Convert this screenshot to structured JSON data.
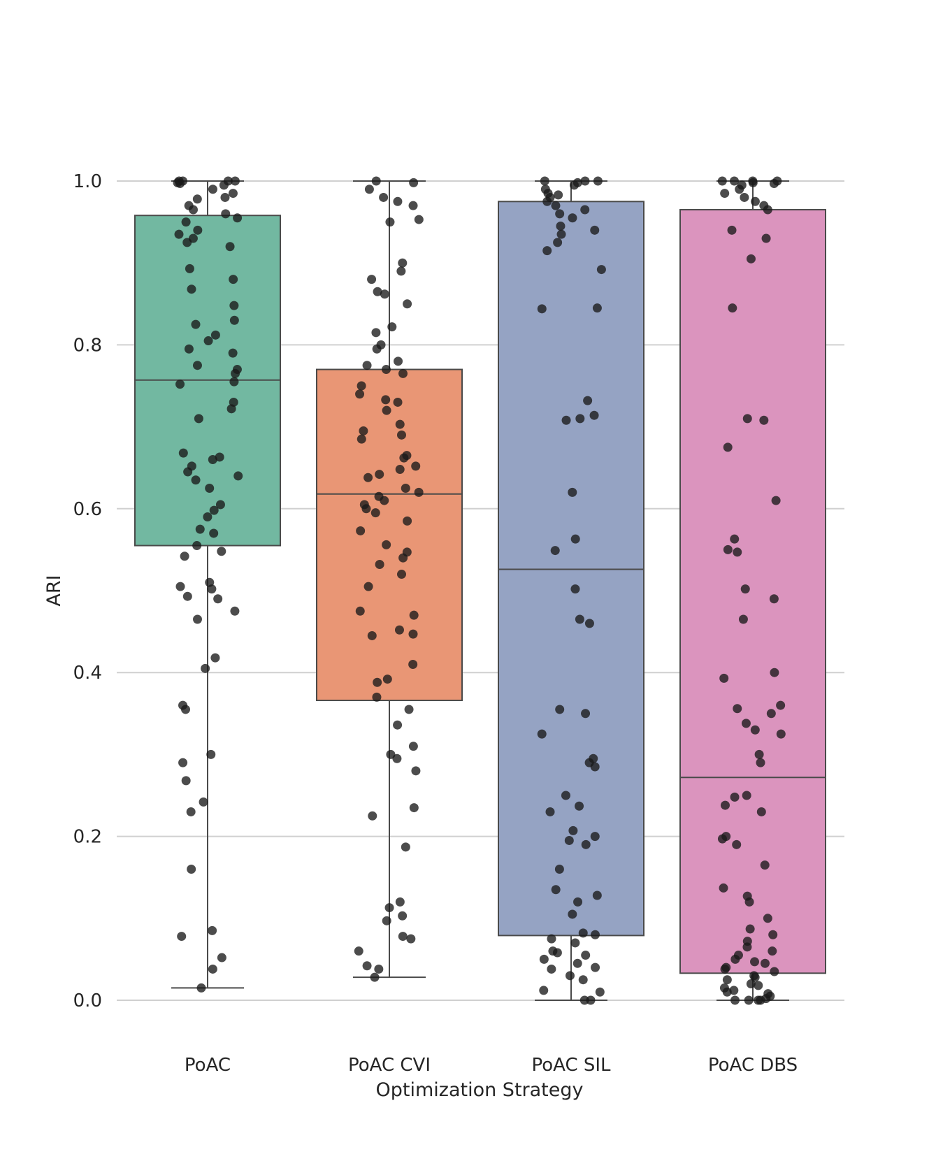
{
  "chart_data": {
    "type": "box",
    "xlabel": "Optimization Strategy",
    "ylabel": "ARI",
    "ylim": [
      0,
      1
    ],
    "yticks": [
      "0.0",
      "0.2",
      "0.4",
      "0.6",
      "0.8",
      "1.0"
    ],
    "grid": "horizontal",
    "categories": [
      "PoAC",
      "PoAC CVI",
      "PoAC SIL",
      "PoAC DBS"
    ],
    "colors": [
      "#72b8a1",
      "#e99675",
      "#95a3c3",
      "#db94be"
    ],
    "point_color": "#1a1a1a",
    "boxes": [
      {
        "name": "PoAC",
        "whisker_low": 0.015,
        "q1": 0.555,
        "median": 0.757,
        "q3": 0.958,
        "whisker_high": 1.0
      },
      {
        "name": "PoAC CVI",
        "whisker_low": 0.028,
        "q1": 0.366,
        "median": 0.618,
        "q3": 0.77,
        "whisker_high": 1.0
      },
      {
        "name": "PoAC SIL",
        "whisker_low": 0.0,
        "q1": 0.079,
        "median": 0.526,
        "q3": 0.975,
        "whisker_high": 1.0
      },
      {
        "name": "PoAC DBS",
        "whisker_low": 0.0,
        "q1": 0.033,
        "median": 0.272,
        "q3": 0.965,
        "whisker_high": 1.0
      }
    ],
    "points": [
      [
        1.0,
        1.0,
        1.0,
        1.0,
        0.998,
        0.997,
        0.995,
        0.99,
        0.985,
        0.98,
        0.978,
        0.97,
        0.965,
        0.96,
        0.955,
        0.95,
        0.94,
        0.935,
        0.93,
        0.925,
        0.92,
        0.893,
        0.88,
        0.868,
        0.848,
        0.83,
        0.825,
        0.812,
        0.805,
        0.795,
        0.79,
        0.775,
        0.77,
        0.765,
        0.755,
        0.752,
        0.73,
        0.722,
        0.71,
        0.668,
        0.663,
        0.66,
        0.652,
        0.645,
        0.64,
        0.635,
        0.625,
        0.605,
        0.598,
        0.59,
        0.575,
        0.57,
        0.555,
        0.548,
        0.542,
        0.51,
        0.505,
        0.502,
        0.493,
        0.49,
        0.475,
        0.465,
        0.418,
        0.405,
        0.36,
        0.355,
        0.3,
        0.29,
        0.268,
        0.242,
        0.23,
        0.16,
        0.085,
        0.078,
        0.052,
        0.038,
        0.015
      ],
      [
        1.0,
        0.998,
        0.99,
        0.98,
        0.975,
        0.97,
        0.953,
        0.95,
        0.9,
        0.89,
        0.88,
        0.865,
        0.862,
        0.85,
        0.822,
        0.815,
        0.8,
        0.795,
        0.78,
        0.775,
        0.77,
        0.765,
        0.75,
        0.74,
        0.733,
        0.73,
        0.72,
        0.703,
        0.695,
        0.69,
        0.685,
        0.665,
        0.662,
        0.652,
        0.648,
        0.642,
        0.638,
        0.625,
        0.62,
        0.615,
        0.61,
        0.605,
        0.6,
        0.595,
        0.585,
        0.573,
        0.556,
        0.547,
        0.54,
        0.532,
        0.52,
        0.505,
        0.475,
        0.47,
        0.452,
        0.447,
        0.445,
        0.41,
        0.392,
        0.388,
        0.37,
        0.355,
        0.336,
        0.31,
        0.3,
        0.295,
        0.28,
        0.235,
        0.225,
        0.187,
        0.12,
        0.113,
        0.103,
        0.097,
        0.078,
        0.075,
        0.06,
        0.042,
        0.038,
        0.028
      ],
      [
        1.0,
        1.0,
        1.0,
        0.998,
        0.995,
        0.99,
        0.985,
        0.983,
        0.98,
        0.975,
        0.97,
        0.965,
        0.96,
        0.955,
        0.945,
        0.94,
        0.935,
        0.925,
        0.915,
        0.892,
        0.845,
        0.844,
        0.732,
        0.714,
        0.71,
        0.708,
        0.62,
        0.563,
        0.549,
        0.502,
        0.465,
        0.46,
        0.355,
        0.35,
        0.325,
        0.295,
        0.29,
        0.285,
        0.25,
        0.237,
        0.23,
        0.207,
        0.2,
        0.195,
        0.19,
        0.16,
        0.135,
        0.128,
        0.12,
        0.105,
        0.082,
        0.08,
        0.075,
        0.07,
        0.06,
        0.058,
        0.055,
        0.05,
        0.045,
        0.04,
        0.038,
        0.03,
        0.025,
        0.012,
        0.01,
        0.0,
        0.0
      ],
      [
        1.0,
        1.0,
        1.0,
        1.0,
        0.998,
        0.997,
        0.995,
        0.99,
        0.985,
        0.98,
        0.975,
        0.97,
        0.965,
        0.94,
        0.93,
        0.905,
        0.845,
        0.71,
        0.708,
        0.675,
        0.61,
        0.563,
        0.55,
        0.547,
        0.502,
        0.49,
        0.465,
        0.4,
        0.393,
        0.36,
        0.356,
        0.35,
        0.338,
        0.33,
        0.325,
        0.3,
        0.29,
        0.25,
        0.248,
        0.238,
        0.23,
        0.2,
        0.197,
        0.19,
        0.165,
        0.137,
        0.127,
        0.12,
        0.1,
        0.087,
        0.08,
        0.072,
        0.065,
        0.06,
        0.055,
        0.05,
        0.047,
        0.045,
        0.04,
        0.038,
        0.035,
        0.03,
        0.028,
        0.025,
        0.02,
        0.018,
        0.015,
        0.012,
        0.01,
        0.008,
        0.005,
        0.002,
        0.0,
        0.0,
        0.0,
        0.0
      ]
    ]
  }
}
